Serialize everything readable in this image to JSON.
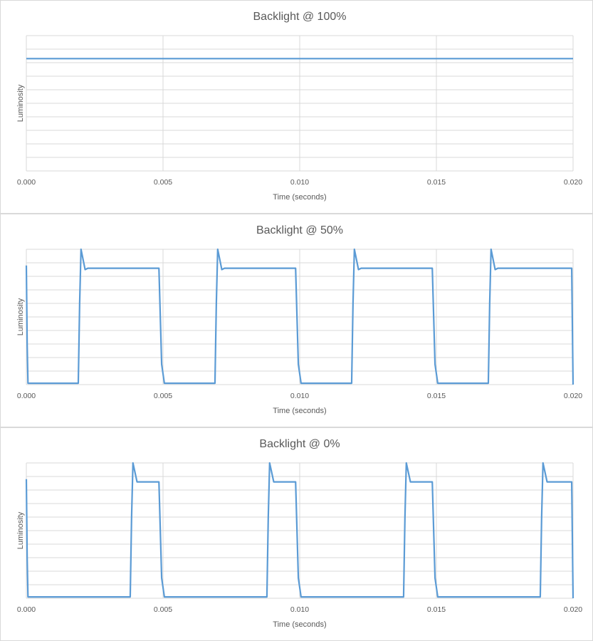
{
  "chart_data": [
    {
      "type": "line",
      "title": "Backlight @ 100%",
      "xlabel": "Time (seconds)",
      "ylabel": "Luminosity",
      "xlim": [
        0,
        0.02
      ],
      "ylim": [
        0,
        10
      ],
      "y_gridlines": 10,
      "x_ticks": [
        "0.000",
        "0.005",
        "0.010",
        "0.015",
        "0.020"
      ],
      "series_color": "#5b9bd5",
      "series": [
        {
          "x": [
            0,
            0.02
          ],
          "y": [
            8.3,
            8.3
          ]
        }
      ]
    },
    {
      "type": "line",
      "title": "Backlight @ 50%",
      "xlabel": "Time (seconds)",
      "ylabel": "Luminosity",
      "xlim": [
        0,
        0.02
      ],
      "ylim": [
        0,
        10
      ],
      "y_gridlines": 10,
      "x_ticks": [
        "0.000",
        "0.005",
        "0.010",
        "0.015",
        "0.020"
      ],
      "series_color": "#5b9bd5",
      "series": [
        {
          "x": [
            0,
            3e-05,
            6e-05,
            0.0019,
            0.00195,
            0.002,
            0.00215,
            0.00225,
            0.00485,
            0.00495,
            0.00505,
            0.0069,
            0.00695,
            0.007,
            0.00715,
            0.00725,
            0.00985,
            0.00995,
            0.01005,
            0.0119,
            0.01195,
            0.012,
            0.01215,
            0.01225,
            0.01485,
            0.01495,
            0.01505,
            0.0169,
            0.01695,
            0.017,
            0.01715,
            0.01725,
            0.01995,
            0.02
          ],
          "y": [
            8.8,
            3.0,
            0.1,
            0.1,
            6.0,
            10.0,
            8.5,
            8.6,
            8.6,
            1.5,
            0.1,
            0.1,
            6.0,
            10.0,
            8.5,
            8.6,
            8.6,
            1.5,
            0.1,
            0.1,
            6.0,
            10.0,
            8.5,
            8.6,
            8.6,
            1.5,
            0.1,
            0.1,
            6.0,
            10.0,
            8.5,
            8.6,
            8.6,
            0.0
          ]
        }
      ]
    },
    {
      "type": "line",
      "title": "Backlight @ 0%",
      "xlabel": "Time (seconds)",
      "ylabel": "Luminosity",
      "xlim": [
        0,
        0.02
      ],
      "ylim": [
        0,
        10
      ],
      "y_gridlines": 10,
      "x_ticks": [
        "0.000",
        "0.005",
        "0.010",
        "0.015",
        "0.020"
      ],
      "series_color": "#5b9bd5",
      "series": [
        {
          "x": [
            0,
            3e-05,
            6e-05,
            0.0038,
            0.00385,
            0.0039,
            0.00405,
            0.00415,
            0.00485,
            0.00495,
            0.00505,
            0.0088,
            0.00885,
            0.0089,
            0.00905,
            0.00915,
            0.00985,
            0.00995,
            0.01005,
            0.0138,
            0.01385,
            0.0139,
            0.01405,
            0.01415,
            0.01485,
            0.01495,
            0.01505,
            0.0188,
            0.01885,
            0.0189,
            0.01905,
            0.01915,
            0.01995,
            0.02
          ],
          "y": [
            8.8,
            3.0,
            0.1,
            0.1,
            6.0,
            10.0,
            8.6,
            8.6,
            8.6,
            1.5,
            0.1,
            0.1,
            6.0,
            10.0,
            8.6,
            8.6,
            8.6,
            1.5,
            0.1,
            0.1,
            6.0,
            10.0,
            8.6,
            8.6,
            8.6,
            1.5,
            0.1,
            0.1,
            6.0,
            10.0,
            8.6,
            8.6,
            8.6,
            0.0
          ]
        }
      ]
    }
  ]
}
